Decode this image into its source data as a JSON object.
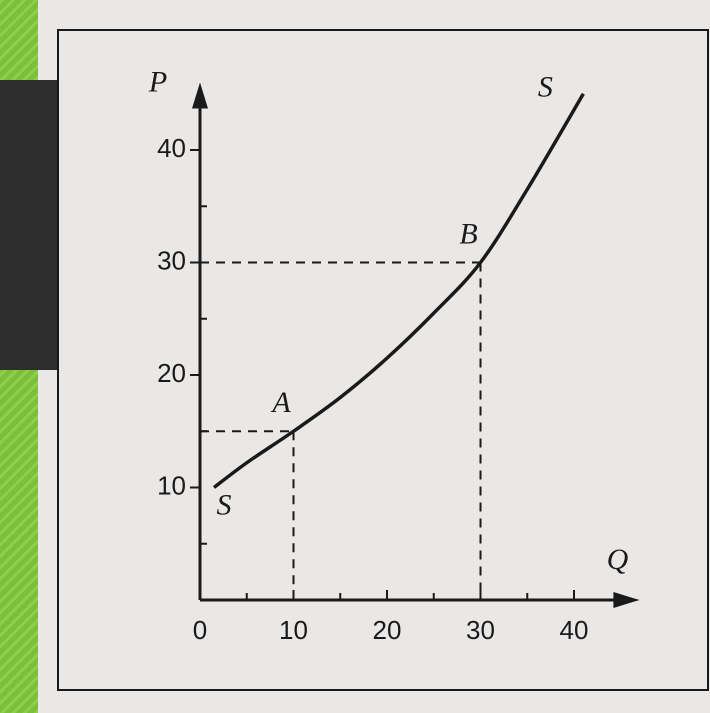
{
  "chart_data": {
    "type": "line",
    "xlabel": "Q",
    "ylabel": "P",
    "x": [
      1.5,
      5,
      10,
      15,
      20,
      25,
      30,
      35,
      41
    ],
    "values": [
      10,
      12.2,
      15,
      18,
      21.5,
      25.5,
      30,
      36.5,
      45
    ],
    "color": "#1a1a1a",
    "end_labels": [
      "S",
      "S"
    ],
    "points": [
      {
        "label": "A",
        "x": 10,
        "y": 15
      },
      {
        "label": "B",
        "x": 30,
        "y": 30
      }
    ],
    "xlim": [
      0,
      47
    ],
    "ylim": [
      0,
      46
    ],
    "xticks": [
      0,
      10,
      20,
      30,
      40
    ],
    "yticks": [
      10,
      20,
      30,
      40
    ],
    "xminor": [
      5,
      15,
      25,
      35
    ],
    "yminor": [
      5,
      15,
      25,
      35
    ]
  }
}
